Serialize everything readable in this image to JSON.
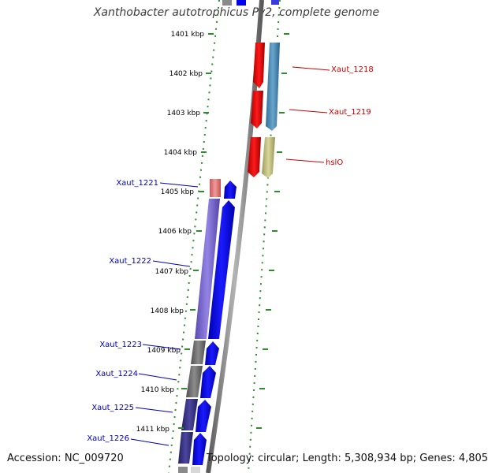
{
  "title": "Xanthobacter autotrophicus Py2, complete genome",
  "footer": {
    "accession": "Accession: NC_009720",
    "topology": "Topology: circular; Length: 5,308,934 bp; Genes: 4,805"
  },
  "ticks": [
    {
      "label": "1401 kbp"
    },
    {
      "label": "1402 kbp"
    },
    {
      "label": "1403 kbp"
    },
    {
      "label": "1404 kbp"
    },
    {
      "label": "1405 kbp"
    },
    {
      "label": "1406 kbp"
    },
    {
      "label": "1407 kbp"
    },
    {
      "label": "1408 kbp"
    },
    {
      "label": "1409 kbp"
    },
    {
      "label": "1410 kbp"
    },
    {
      "label": "1411 kbp"
    }
  ],
  "genes": [
    {
      "label": "Xaut_1218",
      "strand": "forward",
      "side": "right"
    },
    {
      "label": "Xaut_1219",
      "strand": "forward",
      "side": "right"
    },
    {
      "label": "hslO",
      "strand": "forward",
      "side": "right"
    },
    {
      "label": "Xaut_1221",
      "strand": "reverse",
      "side": "left"
    },
    {
      "label": "Xaut_1222",
      "strand": "reverse",
      "side": "left"
    },
    {
      "label": "Xaut_1223",
      "strand": "reverse",
      "side": "left"
    },
    {
      "label": "Xaut_1224",
      "strand": "reverse",
      "side": "left"
    },
    {
      "label": "Xaut_1225",
      "strand": "reverse",
      "side": "left"
    },
    {
      "label": "Xaut_1226",
      "strand": "reverse",
      "side": "left"
    }
  ],
  "colors": {
    "forward_label": "#cc0000",
    "reverse_label": "#0000bb",
    "cds": "#0000ee",
    "gene_forward": "#ee0000",
    "backbone": "#888888",
    "ruler_dots": "#2e8b2e"
  }
}
